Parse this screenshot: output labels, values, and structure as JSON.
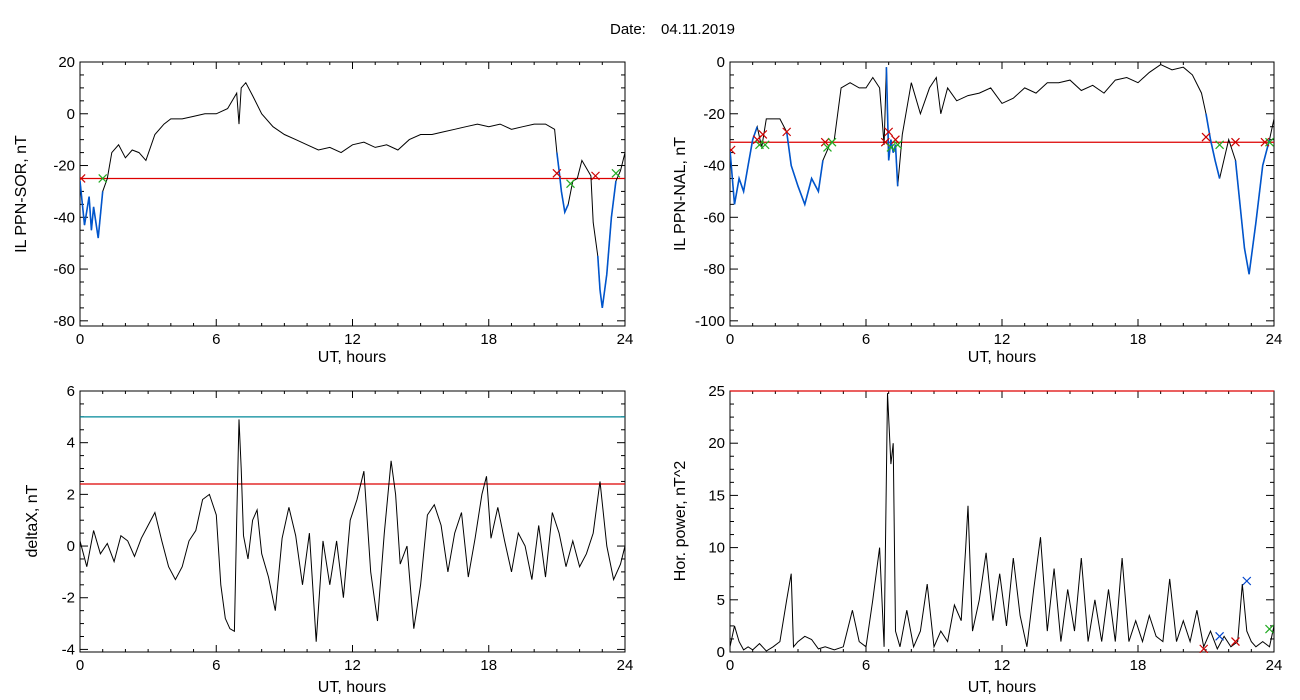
{
  "figure": {
    "title_label": "Date:",
    "title_date": "04.11.2019"
  },
  "colors": {
    "trace": "#000000",
    "threshold": "#dd0000",
    "activity": "#0055cc",
    "upper_threshold": "#008899",
    "marker_red": "#cc0000",
    "marker_green": "#22aa22",
    "marker_blue": "#0044cc"
  },
  "chart_data": [
    {
      "id": "il-sor",
      "type": "line",
      "ylabel": "IL PPN-SOR, nT",
      "xlabel": "UT, hours",
      "xlim": [
        0,
        24
      ],
      "ylim": [
        -82,
        20
      ],
      "xticks": [
        0,
        6,
        12,
        18,
        24
      ],
      "yticks": [
        -80,
        -60,
        -40,
        -20,
        0,
        20
      ],
      "threshold": -25,
      "series": [
        {
          "role": "trace",
          "x": [
            0,
            0.2,
            0.4,
            0.5,
            0.6,
            0.8,
            1.0,
            1.2,
            1.4,
            1.7,
            2.0,
            2.3,
            2.6,
            2.9,
            3.3,
            3.7,
            4.0,
            4.5,
            5.0,
            5.5,
            6.0,
            6.5,
            6.9,
            7.0,
            7.1,
            7.3,
            7.6,
            8.0,
            8.5,
            9.0,
            9.5,
            10.0,
            10.5,
            11.0,
            11.5,
            12.0,
            12.5,
            13.0,
            13.5,
            14.0,
            14.5,
            15.0,
            15.5,
            16.0,
            16.5,
            17.0,
            17.5,
            18.0,
            18.5,
            19.0,
            19.5,
            20.0,
            20.5,
            20.9,
            21.0,
            21.1,
            21.2,
            21.35,
            21.5,
            21.7,
            21.9,
            22.1,
            22.3,
            22.5,
            22.6,
            22.8,
            22.9,
            23.0,
            23.2,
            23.4,
            23.6,
            23.8,
            24.0
          ],
          "y": [
            -26,
            -43,
            -32,
            -45,
            -36,
            -48,
            -30,
            -25,
            -15,
            -12,
            -17,
            -14,
            -15,
            -18,
            -8,
            -4,
            -2,
            -2,
            -1,
            0,
            0,
            2,
            8,
            -4,
            10,
            12,
            7,
            0,
            -5,
            -8,
            -10,
            -12,
            -14,
            -13,
            -15,
            -12,
            -11,
            -13,
            -12,
            -14,
            -10,
            -8,
            -8,
            -7,
            -6,
            -5,
            -4,
            -5,
            -4,
            -6,
            -5,
            -4,
            -4,
            -6,
            -15,
            -22,
            -30,
            -38,
            -35,
            -26,
            -25,
            -18,
            -21,
            -24,
            -42,
            -55,
            -68,
            -75,
            -62,
            -40,
            -26,
            -22,
            -15
          ]
        }
      ],
      "markers": [
        {
          "x": 0.05,
          "y": -25,
          "color": "marker_red"
        },
        {
          "x": 1.0,
          "y": -25,
          "color": "marker_green"
        },
        {
          "x": 21.0,
          "y": -23,
          "color": "marker_red"
        },
        {
          "x": 21.6,
          "y": -27,
          "color": "marker_green"
        },
        {
          "x": 22.7,
          "y": -24,
          "color": "marker_red"
        },
        {
          "x": 23.6,
          "y": -23,
          "color": "marker_green"
        }
      ],
      "active_intervals": [
        [
          0,
          1.0
        ],
        [
          21.0,
          21.6
        ],
        [
          22.7,
          23.6
        ]
      ]
    },
    {
      "id": "il-nal",
      "type": "line",
      "ylabel": "IL PPN-NAL, nT",
      "xlabel": "UT, hours",
      "xlim": [
        0,
        24
      ],
      "ylim": [
        -102,
        0
      ],
      "xticks": [
        0,
        6,
        12,
        18,
        24
      ],
      "yticks": [
        -100,
        -80,
        -60,
        -40,
        -20,
        0
      ],
      "threshold": -31,
      "series": [
        {
          "role": "trace",
          "x": [
            0,
            0.2,
            0.4,
            0.6,
            0.8,
            1.0,
            1.2,
            1.4,
            1.6,
            1.9,
            2.2,
            2.5,
            2.7,
            3.0,
            3.3,
            3.6,
            3.9,
            4.1,
            4.4,
            4.6,
            4.9,
            5.3,
            5.7,
            6.0,
            6.3,
            6.6,
            6.8,
            6.9,
            7.0,
            7.1,
            7.2,
            7.3,
            7.4,
            7.6,
            8.0,
            8.4,
            8.8,
            9.1,
            9.3,
            9.6,
            10.0,
            10.5,
            11.0,
            11.5,
            12.0,
            12.5,
            13.0,
            13.5,
            14.0,
            14.5,
            15.0,
            15.5,
            16.0,
            16.5,
            17.0,
            17.5,
            18.0,
            18.5,
            19.0,
            19.5,
            20.0,
            20.4,
            20.8,
            21.0,
            21.2,
            21.4,
            21.6,
            22.0,
            22.3,
            22.5,
            22.7,
            22.9,
            23.2,
            23.5,
            23.8,
            24.0
          ],
          "y": [
            -34,
            -55,
            -45,
            -50,
            -40,
            -30,
            -25,
            -33,
            -22,
            -22,
            -22,
            -27,
            -40,
            -48,
            -55,
            -45,
            -50,
            -38,
            -32,
            -30,
            -10,
            -8,
            -10,
            -10,
            -6,
            -10,
            -32,
            -2,
            -38,
            -30,
            -35,
            -32,
            -48,
            -28,
            -8,
            -20,
            -10,
            -6,
            -20,
            -10,
            -15,
            -13,
            -12,
            -10,
            -16,
            -14,
            -10,
            -12,
            -8,
            -8,
            -7,
            -11,
            -9,
            -12,
            -7,
            -6,
            -8,
            -4,
            -1,
            -3,
            -2,
            -5,
            -12,
            -20,
            -30,
            -38,
            -45,
            -30,
            -38,
            -55,
            -72,
            -82,
            -62,
            -40,
            -30,
            -22
          ]
        }
      ],
      "markers": [
        {
          "x": 0.05,
          "y": -34,
          "color": "marker_red"
        },
        {
          "x": 1.2,
          "y": -30,
          "color": "marker_red"
        },
        {
          "x": 1.3,
          "y": -32,
          "color": "marker_green"
        },
        {
          "x": 1.45,
          "y": -28,
          "color": "marker_red"
        },
        {
          "x": 1.55,
          "y": -32,
          "color": "marker_green"
        },
        {
          "x": 2.5,
          "y": -27,
          "color": "marker_red"
        },
        {
          "x": 4.2,
          "y": -31,
          "color": "marker_red"
        },
        {
          "x": 4.3,
          "y": -33,
          "color": "marker_green"
        },
        {
          "x": 4.5,
          "y": -31,
          "color": "marker_green"
        },
        {
          "x": 6.85,
          "y": -31,
          "color": "marker_red"
        },
        {
          "x": 7.0,
          "y": -27,
          "color": "marker_red"
        },
        {
          "x": 7.1,
          "y": -33,
          "color": "marker_green"
        },
        {
          "x": 7.3,
          "y": -30,
          "color": "marker_red"
        },
        {
          "x": 7.4,
          "y": -32,
          "color": "marker_green"
        },
        {
          "x": 21.0,
          "y": -29,
          "color": "marker_red"
        },
        {
          "x": 21.6,
          "y": -32,
          "color": "marker_green"
        },
        {
          "x": 22.3,
          "y": -31,
          "color": "marker_red"
        },
        {
          "x": 23.6,
          "y": -31,
          "color": "marker_red"
        },
        {
          "x": 23.8,
          "y": -31,
          "color": "marker_green"
        }
      ],
      "active_intervals": [
        [
          0,
          1.3
        ],
        [
          1.45,
          1.55
        ],
        [
          2.5,
          4.3
        ],
        [
          6.85,
          7.4
        ],
        [
          21.0,
          21.6
        ],
        [
          22.3,
          23.8
        ]
      ]
    },
    {
      "id": "delta-x",
      "type": "line",
      "ylabel": "deltaX, nT",
      "xlabel": "UT, hours",
      "xlim": [
        0,
        24
      ],
      "ylim": [
        -4.1,
        6
      ],
      "xticks": [
        0,
        6,
        12,
        18,
        24
      ],
      "yticks": [
        -4,
        -2,
        0,
        2,
        4,
        6
      ],
      "threshold": 2.4,
      "upper_threshold": 5.0,
      "series": [
        {
          "role": "trace",
          "x": [
            0,
            0.3,
            0.6,
            0.9,
            1.2,
            1.5,
            1.8,
            2.1,
            2.4,
            2.7,
            3.0,
            3.3,
            3.6,
            3.9,
            4.2,
            4.5,
            4.8,
            5.1,
            5.4,
            5.7,
            6.0,
            6.2,
            6.4,
            6.6,
            6.8,
            6.9,
            7.0,
            7.1,
            7.2,
            7.4,
            7.6,
            7.8,
            8.0,
            8.3,
            8.6,
            8.9,
            9.2,
            9.5,
            9.8,
            10.1,
            10.4,
            10.7,
            11.0,
            11.3,
            11.6,
            11.9,
            12.2,
            12.5,
            12.8,
            13.1,
            13.4,
            13.7,
            13.9,
            14.1,
            14.4,
            14.7,
            15.0,
            15.3,
            15.6,
            15.9,
            16.2,
            16.5,
            16.8,
            17.1,
            17.4,
            17.7,
            17.9,
            18.1,
            18.4,
            18.7,
            19.0,
            19.3,
            19.6,
            19.9,
            20.2,
            20.5,
            20.8,
            21.1,
            21.4,
            21.7,
            22.0,
            22.3,
            22.6,
            22.9,
            23.2,
            23.5,
            23.8,
            24.0
          ],
          "y": [
            0.2,
            -0.8,
            0.6,
            -0.3,
            0.1,
            -0.6,
            0.4,
            0.2,
            -0.4,
            0.3,
            0.8,
            1.3,
            0.2,
            -0.8,
            -1.3,
            -0.8,
            0.2,
            0.6,
            1.8,
            2.0,
            1.2,
            -1.5,
            -2.8,
            -3.2,
            -3.3,
            1.0,
            4.9,
            3.0,
            0.4,
            -0.5,
            1.0,
            1.4,
            -0.3,
            -1.2,
            -2.5,
            0.3,
            1.5,
            0.4,
            -1.5,
            0.5,
            -3.7,
            0.2,
            -1.5,
            0.2,
            -2.0,
            1.0,
            1.8,
            2.9,
            -1.0,
            -2.9,
            0.5,
            3.3,
            2.0,
            -0.7,
            0.0,
            -3.2,
            -1.5,
            1.2,
            1.6,
            0.8,
            -1.0,
            0.5,
            1.3,
            -1.2,
            0.3,
            2.0,
            2.7,
            0.3,
            1.5,
            0.2,
            -1.0,
            0.5,
            0.0,
            -1.3,
            0.8,
            -1.2,
            1.3,
            0.5,
            -0.8,
            0.2,
            -0.8,
            -0.3,
            0.5,
            2.5,
            0.0,
            -1.3,
            -0.7,
            0.0
          ]
        }
      ]
    },
    {
      "id": "hor-power",
      "type": "line",
      "ylabel": "Hor. power, nT^2",
      "xlabel": "UT, hours",
      "xlim": [
        0,
        24
      ],
      "ylim": [
        0,
        25
      ],
      "xticks": [
        0,
        6,
        12,
        18,
        24
      ],
      "yticks": [
        0,
        5,
        10,
        15,
        20,
        25
      ],
      "threshold": 25,
      "series": [
        {
          "role": "trace",
          "x": [
            0,
            0.2,
            0.4,
            0.6,
            0.8,
            1.0,
            1.3,
            1.6,
            1.9,
            2.2,
            2.5,
            2.7,
            2.8,
            3.0,
            3.3,
            3.6,
            3.9,
            4.2,
            4.6,
            5.0,
            5.4,
            5.7,
            6.0,
            6.3,
            6.6,
            6.8,
            6.95,
            7.1,
            7.2,
            7.3,
            7.5,
            7.8,
            8.1,
            8.4,
            8.7,
            9.0,
            9.3,
            9.6,
            9.9,
            10.2,
            10.4,
            10.5,
            10.7,
            11.0,
            11.3,
            11.6,
            11.9,
            12.2,
            12.5,
            12.8,
            13.1,
            13.4,
            13.7,
            14.0,
            14.3,
            14.6,
            14.9,
            15.2,
            15.5,
            15.8,
            16.1,
            16.4,
            16.7,
            17.0,
            17.3,
            17.6,
            17.9,
            18.2,
            18.5,
            18.8,
            19.1,
            19.4,
            19.7,
            20.0,
            20.3,
            20.6,
            20.9,
            21.2,
            21.5,
            21.8,
            22.1,
            22.4,
            22.6,
            22.8,
            23.0,
            23.2,
            23.5,
            23.8,
            24.0
          ],
          "y": [
            0.5,
            2.5,
            1.0,
            0.2,
            0.5,
            0.2,
            0.8,
            0.1,
            0.5,
            1.0,
            5.0,
            7.5,
            0.5,
            1.0,
            1.5,
            1.2,
            0.3,
            0.5,
            0.2,
            0.5,
            4.0,
            1.0,
            0.5,
            5.0,
            10.0,
            0.5,
            24.8,
            18.0,
            20.0,
            2.0,
            0.5,
            4.0,
            0.5,
            2.0,
            6.5,
            0.5,
            2.0,
            1.0,
            4.5,
            3.0,
            10.0,
            14.0,
            2.0,
            5.0,
            9.5,
            3.0,
            7.5,
            2.5,
            9.0,
            3.5,
            0.5,
            6.0,
            11.0,
            2.0,
            8.0,
            1.0,
            6.0,
            2.0,
            9.0,
            1.0,
            5.0,
            1.0,
            6.0,
            1.0,
            9.0,
            1.0,
            3.0,
            1.0,
            3.5,
            1.5,
            1.0,
            7.0,
            1.0,
            3.0,
            1.0,
            4.0,
            0.5,
            2.0,
            0.3,
            1.5,
            0.5,
            1.0,
            6.5,
            2.0,
            1.0,
            0.5,
            1.0,
            0.5,
            2.5
          ]
        }
      ],
      "markers": [
        {
          "x": 20.9,
          "y": 0.3,
          "color": "marker_red"
        },
        {
          "x": 21.6,
          "y": 1.5,
          "color": "marker_blue"
        },
        {
          "x": 22.3,
          "y": 1.0,
          "color": "marker_red"
        },
        {
          "x": 22.8,
          "y": 6.8,
          "color": "marker_blue"
        },
        {
          "x": 23.8,
          "y": 2.2,
          "color": "marker_green"
        }
      ]
    }
  ]
}
